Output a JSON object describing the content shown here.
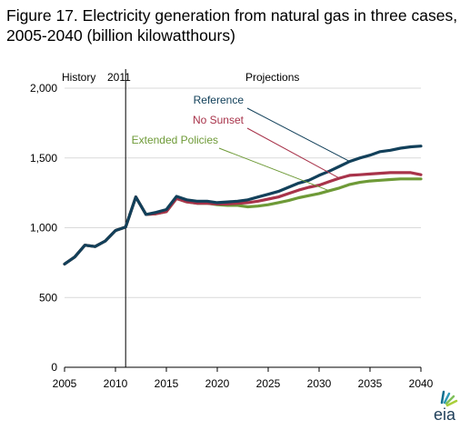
{
  "title": "Figure 17. Electricity generation from natural gas in three cases, 2005-2040 (billion kilowatthours)",
  "logo_text": "eia",
  "chart_data": {
    "type": "line",
    "title": "Figure 17. Electricity generation from natural gas in three cases, 2005-2040 (billion kilowatthours)",
    "xlabel": "",
    "ylabel": "",
    "xlim": [
      2005,
      2040
    ],
    "ylim": [
      0,
      2000
    ],
    "x_ticks": [
      2005,
      2010,
      2015,
      2020,
      2025,
      2030,
      2035,
      2040
    ],
    "y_ticks": [
      0,
      500,
      1000,
      1500,
      2000
    ],
    "y_tick_labels": [
      "0",
      "500",
      "1,000",
      "1,500",
      "2,000"
    ],
    "grid": "horizontal",
    "divider_year": 2011,
    "annotations": {
      "history": "History",
      "divider": "2011",
      "projections": "Projections"
    },
    "series": [
      {
        "name": "Reference",
        "color": "#12405A",
        "x": [
          2005,
          2006,
          2007,
          2008,
          2009,
          2010,
          2011,
          2012,
          2013,
          2014,
          2015,
          2016,
          2017,
          2018,
          2019,
          2020,
          2021,
          2022,
          2023,
          2024,
          2025,
          2026,
          2027,
          2028,
          2029,
          2030,
          2031,
          2032,
          2033,
          2034,
          2035,
          2036,
          2037,
          2038,
          2039,
          2040
        ],
        "values": [
          740,
          790,
          875,
          865,
          905,
          980,
          1005,
          1220,
          1095,
          1110,
          1130,
          1225,
          1200,
          1190,
          1190,
          1180,
          1185,
          1190,
          1200,
          1220,
          1240,
          1260,
          1290,
          1320,
          1340,
          1375,
          1405,
          1440,
          1475,
          1500,
          1520,
          1545,
          1555,
          1570,
          1580,
          1585
        ]
      },
      {
        "name": "No Sunset",
        "color": "#A8334A",
        "x": [
          2005,
          2006,
          2007,
          2008,
          2009,
          2010,
          2011,
          2012,
          2013,
          2014,
          2015,
          2016,
          2017,
          2018,
          2019,
          2020,
          2021,
          2022,
          2023,
          2024,
          2025,
          2026,
          2027,
          2028,
          2029,
          2030,
          2031,
          2032,
          2033,
          2034,
          2035,
          2036,
          2037,
          2038,
          2039,
          2040
        ],
        "values": [
          740,
          790,
          875,
          865,
          905,
          980,
          1005,
          1220,
          1095,
          1100,
          1115,
          1210,
          1185,
          1175,
          1175,
          1170,
          1170,
          1175,
          1180,
          1190,
          1205,
          1220,
          1245,
          1270,
          1290,
          1305,
          1330,
          1355,
          1375,
          1380,
          1385,
          1390,
          1395,
          1395,
          1395,
          1380
        ]
      },
      {
        "name": "Extended Policies",
        "color": "#6E9A37",
        "x": [
          2005,
          2006,
          2007,
          2008,
          2009,
          2010,
          2011,
          2012,
          2013,
          2014,
          2015,
          2016,
          2017,
          2018,
          2019,
          2020,
          2021,
          2022,
          2023,
          2024,
          2025,
          2026,
          2027,
          2028,
          2029,
          2030,
          2031,
          2032,
          2033,
          2034,
          2035,
          2036,
          2037,
          2038,
          2039,
          2040
        ],
        "values": [
          740,
          790,
          875,
          865,
          905,
          980,
          1005,
          1220,
          1095,
          1100,
          1115,
          1210,
          1185,
          1175,
          1175,
          1165,
          1160,
          1160,
          1150,
          1155,
          1165,
          1180,
          1195,
          1215,
          1230,
          1245,
          1265,
          1285,
          1310,
          1325,
          1335,
          1340,
          1345,
          1350,
          1350,
          1350
        ]
      }
    ]
  }
}
